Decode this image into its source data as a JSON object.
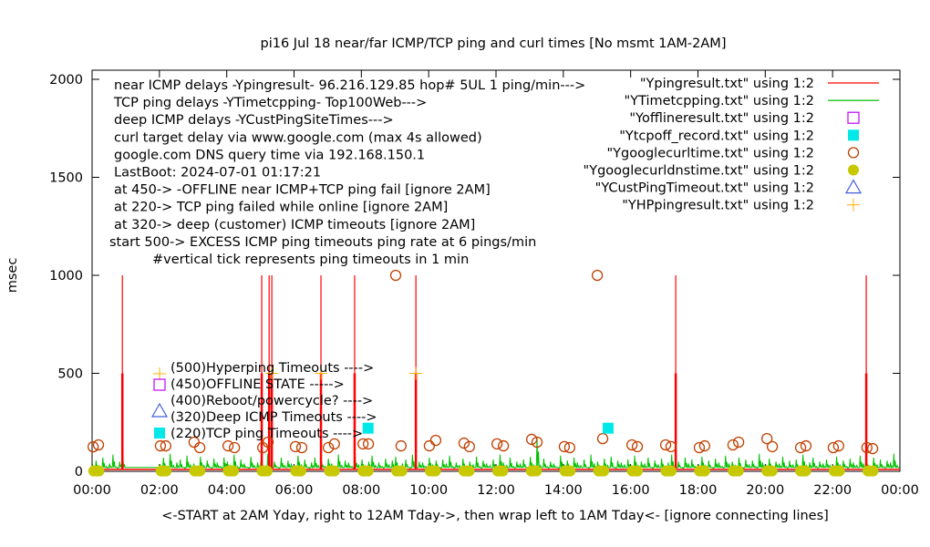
{
  "chart_data": {
    "type": "line",
    "title": "pi16 Jul 18  near/far ICMP/TCP ping and curl times [No msmt 1AM-2AM]",
    "xlabel": "<-START at 2AM Yday, right to 12AM Tday->, then wrap left to 1AM Tday<- [ignore connecting lines]",
    "ylabel": "msec",
    "xlim_hours": [
      0,
      24
    ],
    "ylim": [
      0,
      2000
    ],
    "x_tick_labels": [
      "00:00",
      "02:00",
      "04:00",
      "06:00",
      "08:00",
      "10:00",
      "12:00",
      "14:00",
      "16:00",
      "18:00",
      "20:00",
      "22:00",
      "00:00"
    ],
    "y_ticks": [
      0,
      500,
      1000,
      1500,
      2000
    ],
    "grid": false,
    "legend_position": "top-right",
    "annotations": [
      "near ICMP delays -Ypingresult- 96.216.129.85 hop# 5UL 1 ping/min--->",
      "TCP ping delays -YTimetcpping- Top100Web--->",
      "deep ICMP delays -YCustPingSiteTimes--->",
      "curl target delay via www.google.com (max 4s allowed)",
      "google.com DNS query time via 192.168.150.1",
      "LastBoot: 2024-07-01 01:17:21",
      "at 450-> -OFFLINE near ICMP+TCP ping fail [ignore 2AM]",
      "at 220-> TCP ping failed while online [ignore 2AM]",
      "at 320-> deep (customer) ICMP timeouts [ignore 2AM]",
      "start 500-> EXCESS ICMP ping timeouts ping rate at 6 pings/min",
      "#vertical tick represents ping timeouts in 1 min"
    ],
    "inline_legend": [
      {
        "label": "(500)Hyperping Timeouts ---->",
        "marker": "plus",
        "color": "#ffb000"
      },
      {
        "label": "(450)OFFLINE STATE ----->",
        "marker": "open-square",
        "color": "#c000ff"
      },
      {
        "label": "(400)Reboot/powercycle? ---->",
        "marker": "none",
        "color": ""
      },
      {
        "label": "(320)Deep ICMP Timeouts ---->",
        "marker": "open-triangle",
        "color": "#4060e0"
      },
      {
        "label": "(220)TCP ping Timeouts ---->",
        "marker": "filled-square",
        "color": "#00e8e8"
      }
    ],
    "legend": [
      {
        "label": "\"Ypingresult.txt\" using 1:2",
        "marker": "line",
        "color": "#ff0000"
      },
      {
        "label": "\"YTimetcpping.txt\" using 1:2",
        "marker": "line",
        "color": "#00c000"
      },
      {
        "label": "\"Yofflineresult.txt\" using 1:2",
        "marker": "open-square",
        "color": "#c000ff"
      },
      {
        "label": "\"Ytcpoff_record.txt\" using 1:2",
        "marker": "filled-square",
        "color": "#00e8e8"
      },
      {
        "label": "\"Ygooglecurltime.txt\" using 1:2",
        "marker": "open-circle",
        "color": "#c04000"
      },
      {
        "label": "\"Ygooglecurldnstime.txt\" using 1:2",
        "marker": "filled-circle",
        "color": "#c8c800"
      },
      {
        "label": "\"YCustPingTimeout.txt\" using 1:2",
        "marker": "open-triangle",
        "color": "#4060e0"
      },
      {
        "label": "\"YHPpingresult.txt\" using 1:2",
        "marker": "plus",
        "color": "#ffb000"
      }
    ],
    "series": {
      "ping_baseline_ms": 10,
      "ping_timeout_spikes": {
        "hours": [
          0.9,
          5.04,
          5.26,
          5.34,
          6.8,
          7.8,
          9.62,
          17.34,
          23.0
        ],
        "value": 1000,
        "tick_value": 500
      },
      "tcp_ping": {
        "x_step_hours": 0.1,
        "values": [
          30,
          55,
          20,
          70,
          25,
          40,
          85,
          22,
          50,
          60,
          null,
          null,
          null,
          null,
          null,
          null,
          null,
          null,
          null,
          null,
          35,
          70,
          25,
          90,
          30,
          45,
          60,
          20,
          80,
          35,
          40,
          25,
          75,
          30,
          55,
          20,
          65,
          45,
          25,
          70,
          50,
          30,
          85,
          25,
          60,
          40,
          20,
          75,
          30,
          45,
          60,
          25,
          90,
          35,
          50,
          20,
          70,
          30,
          55,
          40,
          25,
          80,
          35,
          60,
          20,
          45,
          70,
          30,
          50,
          25,
          65,
          40,
          20,
          85,
          30,
          55,
          45,
          25,
          70,
          35,
          60,
          20,
          50,
          80,
          30,
          45,
          25,
          65,
          35,
          55,
          75,
          25,
          40,
          60,
          20,
          85,
          30,
          50,
          45,
          25,
          70,
          35,
          55,
          20,
          60,
          40,
          80,
          25,
          45,
          30,
          65,
          20,
          50,
          35,
          75,
          25,
          55,
          40,
          30,
          60,
          20,
          85,
          45,
          30,
          70,
          25,
          50,
          40,
          60,
          20,
          75,
          35,
          170,
          30,
          65,
          25,
          50,
          40,
          20,
          80,
          35,
          55,
          25,
          70,
          45,
          30,
          60,
          20,
          85,
          40,
          50,
          25,
          65,
          30,
          75,
          20,
          55,
          45,
          35,
          60,
          25,
          80,
          30,
          50,
          40,
          70,
          20,
          55,
          35,
          65,
          25,
          45,
          85,
          30,
          50,
          20,
          70,
          40,
          60,
          25,
          35,
          75,
          30,
          55,
          20,
          65,
          45,
          25,
          80,
          40,
          50,
          30,
          70,
          20,
          60,
          35,
          55,
          25,
          90,
          45,
          30,
          65,
          20,
          50,
          40,
          75,
          25,
          55,
          35,
          60,
          20,
          85,
          30,
          45,
          70,
          25,
          50,
          40,
          60,
          30,
          20,
          75,
          35,
          55,
          25,
          65,
          45,
          30,
          80,
          40,
          50,
          20,
          70,
          35,
          60,
          25,
          55,
          45,
          90,
          30
        ]
      },
      "curl_ms": [
        [
          0.03,
          125
        ],
        [
          0.19,
          135
        ],
        [
          2.03,
          130
        ],
        [
          2.19,
          130
        ],
        [
          3.03,
          149
        ],
        [
          3.2,
          121
        ],
        [
          4.04,
          130
        ],
        [
          4.23,
          121
        ],
        [
          5.07,
          121
        ],
        [
          5.23,
          149
        ],
        [
          6.04,
          126
        ],
        [
          6.23,
          121
        ],
        [
          7.02,
          121
        ],
        [
          7.2,
          140
        ],
        [
          8.05,
          140
        ],
        [
          8.21,
          140
        ],
        [
          9.02,
          1000
        ],
        [
          9.18,
          130
        ],
        [
          10.02,
          130
        ],
        [
          10.21,
          158
        ],
        [
          11.05,
          144
        ],
        [
          11.21,
          126
        ],
        [
          12.03,
          140
        ],
        [
          12.22,
          130
        ],
        [
          13.06,
          163
        ],
        [
          13.22,
          149
        ],
        [
          14.03,
          126
        ],
        [
          14.19,
          121
        ],
        [
          15.01,
          1000
        ],
        [
          15.17,
          167
        ],
        [
          16.04,
          135
        ],
        [
          16.2,
          126
        ],
        [
          17.04,
          135
        ],
        [
          17.2,
          126
        ],
        [
          18.04,
          121
        ],
        [
          18.2,
          130
        ],
        [
          19.04,
          135
        ],
        [
          19.21,
          149
        ],
        [
          20.05,
          167
        ],
        [
          20.21,
          126
        ],
        [
          21.05,
          121
        ],
        [
          21.21,
          130
        ],
        [
          22.02,
          121
        ],
        [
          22.18,
          130
        ],
        [
          23.02,
          121
        ],
        [
          23.19,
          116
        ]
      ],
      "dns_ms_hours": [
        0.05,
        0.12,
        0.2,
        2.05,
        2.12,
        2.2,
        3.05,
        3.12,
        3.2,
        4.05,
        4.12,
        4.2,
        5.05,
        5.12,
        5.2,
        6.05,
        6.12,
        6.2,
        7.05,
        7.12,
        7.2,
        8.05,
        8.12,
        8.2,
        9.05,
        9.12,
        9.2,
        10.05,
        10.12,
        10.2,
        11.05,
        11.12,
        11.2,
        12.05,
        12.12,
        12.2,
        13.05,
        13.12,
        13.2,
        14.05,
        14.12,
        14.2,
        15.05,
        15.12,
        15.2,
        16.05,
        16.12,
        16.2,
        17.05,
        17.12,
        17.2,
        18.05,
        18.12,
        18.2,
        19.05,
        19.12,
        19.2,
        20.05,
        20.12,
        20.2,
        21.05,
        21.12,
        21.2,
        22.05,
        22.12,
        22.2,
        23.05,
        23.12,
        23.2
      ],
      "dns_ms_value": 2,
      "hyperping_timeouts": [
        [
          5.34,
          500
        ],
        [
          6.8,
          500
        ],
        [
          9.62,
          500
        ]
      ],
      "tcp_ping_timeouts": [
        [
          8.2,
          220
        ],
        [
          15.33,
          220
        ]
      ]
    }
  }
}
